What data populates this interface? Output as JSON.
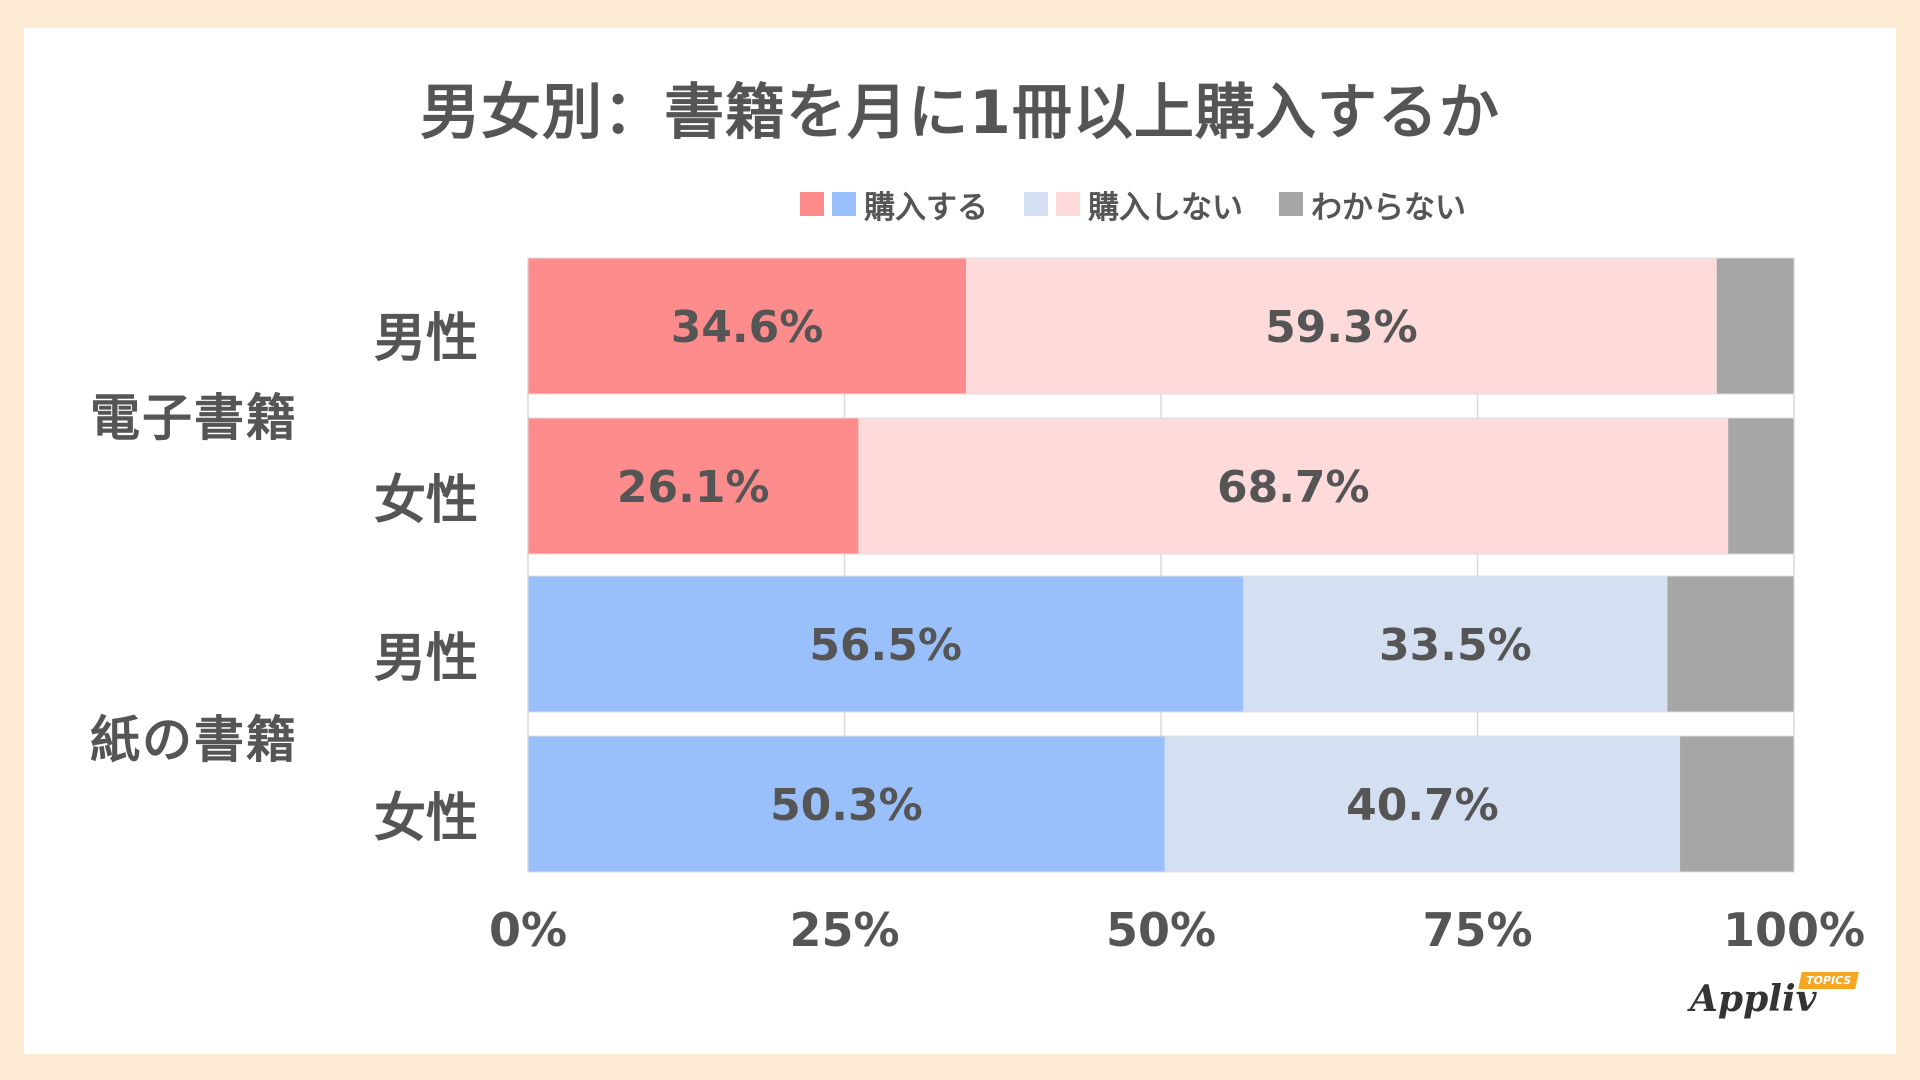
{
  "title": "男女別：書籍を月に1冊以上購入するか",
  "legend": [
    {
      "label": "購入する",
      "colors": [
        "#ff8c8c",
        "#9ac0fb"
      ]
    },
    {
      "label": "購入しない",
      "colors": [
        "#d4e0f2",
        "#ffdada"
      ]
    },
    {
      "label": "わからない",
      "colors": [
        "#a6a6a6"
      ]
    }
  ],
  "groups": [
    {
      "label": "電子書籍"
    },
    {
      "label": "紙の書籍"
    }
  ],
  "rows": [
    {
      "label": "男性"
    },
    {
      "label": "女性"
    },
    {
      "label": "男性"
    },
    {
      "label": "女性"
    }
  ],
  "colors": {
    "ebook_buy": "#ff8c8c",
    "ebook_nobuy": "#ffdada",
    "paper_buy": "#9ac0fb",
    "paper_nobuy": "#d4e0f2",
    "unknown": "#a6a6a6",
    "text": "#555555"
  },
  "chart_data": {
    "type": "bar",
    "orientation": "horizontal",
    "stacked": true,
    "title": "男女別：書籍を月に1冊以上購入するか",
    "categories": [
      "電子書籍 男性",
      "電子書籍 女性",
      "紙の書籍 男性",
      "紙の書籍 女性"
    ],
    "series": [
      {
        "name": "購入する",
        "values": [
          34.6,
          26.1,
          56.5,
          50.3
        ],
        "labels": [
          "34.6%",
          "26.1%",
          "56.5%",
          "50.3%"
        ]
      },
      {
        "name": "購入しない",
        "values": [
          59.3,
          68.7,
          33.5,
          40.7
        ],
        "labels": [
          "59.3%",
          "68.7%",
          "33.5%",
          "40.7%"
        ]
      },
      {
        "name": "わからない",
        "values": [
          6.1,
          5.2,
          10.0,
          9.0
        ]
      }
    ],
    "xlim": [
      0,
      100
    ],
    "x_ticks": [
      "0%",
      "25%",
      "50%",
      "75%",
      "100%"
    ],
    "grid": true,
    "legend_position": "top"
  },
  "logo": {
    "text": "Appliv",
    "tag": "TOPICS"
  }
}
